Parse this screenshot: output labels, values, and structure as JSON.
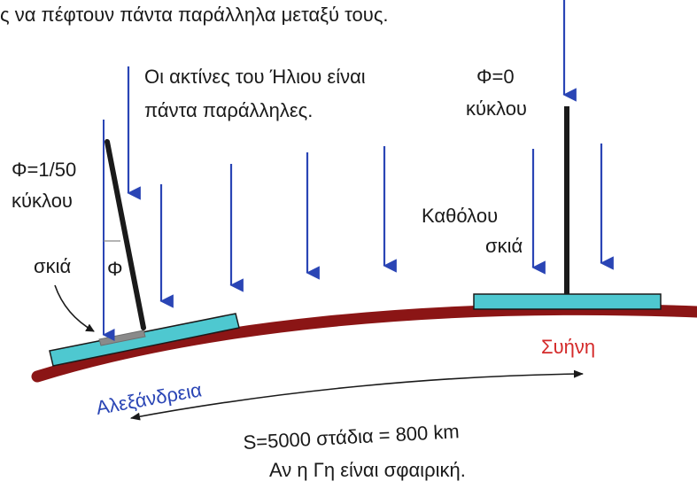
{
  "top_text": "ς να πέφτουν πάντα παράλληλα μεταξύ τους.",
  "rays_note": {
    "line1": "Οι ακτίνες του Ήλιου είναι",
    "line2": "πάντα παράλληλες."
  },
  "alexandria": {
    "angle_line1": "Φ=1/50",
    "angle_line2": "κύκλου",
    "shadow_label": "σκιά",
    "phi_symbol": "Φ",
    "city_label": "Αλεξάνδρεια"
  },
  "syene": {
    "angle_line1": "Φ=0",
    "angle_line2": "κύκλου",
    "no_shadow_line1": "Καθόλου",
    "no_shadow_line2": "σκιά",
    "city_label": "Συήνη"
  },
  "distance": {
    "line1": "S=5000 στάδια = 800 km",
    "line2": "Αν η Γη είναι σφαιρική."
  },
  "colors": {
    "earth": "#8b1515",
    "platform": "#4ec8d0",
    "ray": "#2a45b5",
    "city_alexandria": "#2a45b5",
    "city_syene": "#d42a2a",
    "shadow": "#8a8a8a"
  }
}
